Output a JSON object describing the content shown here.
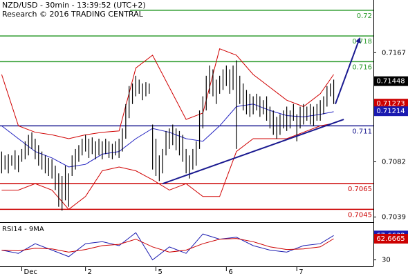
{
  "chart_data": [
    {
      "type": "ohlc",
      "title": "NZD/USD - 30min - 13:39:52 (UTC+2)",
      "subtitle": "Research © 2016 TRADING CENTRAL",
      "categories": [
        null,
        null,
        null,
        null,
        null,
        null,
        "Dec",
        null,
        null,
        null,
        null,
        null,
        null,
        null,
        null,
        null,
        null,
        null,
        null,
        null,
        null,
        null,
        null,
        null,
        null,
        "2",
        null,
        null,
        null,
        null,
        null,
        null,
        null,
        null,
        null,
        null,
        null,
        null,
        null,
        null,
        null,
        null,
        null,
        null,
        null,
        null,
        "5",
        null,
        null,
        null,
        null,
        null,
        null,
        null,
        null,
        null,
        null,
        null,
        null,
        null,
        null,
        null,
        null,
        null,
        null,
        null,
        null,
        "6",
        null,
        null,
        null,
        null,
        null,
        null,
        null,
        null,
        null,
        null,
        null,
        null,
        null,
        null,
        null,
        null,
        null,
        null,
        null,
        null,
        "7",
        null,
        null,
        null,
        null,
        null,
        null,
        null,
        null,
        null,
        null,
        null
      ],
      "high": [
        0.709,
        0.7087,
        0.7088,
        0.7087,
        0.7091,
        0.7087,
        0.7092,
        0.7098,
        0.7103,
        0.7105,
        0.71,
        0.7095,
        0.709,
        0.7087,
        0.7085,
        0.7084,
        0.7079,
        0.7073,
        0.7071,
        0.7079,
        0.7073,
        0.7087,
        0.7092,
        0.7095,
        0.71,
        0.7103,
        0.71,
        0.7101,
        0.7098,
        0.71,
        0.7098,
        0.71,
        0.7098,
        0.7096,
        0.7098,
        0.71,
        0.7108,
        0.7127,
        0.7141,
        0.7143,
        0.7149,
        0.7146,
        0.7143,
        0.7144,
        0.7143,
        0.7111,
        0.71,
        0.7087,
        0.7092,
        0.7106,
        0.7108,
        0.7111,
        0.7108,
        0.7106,
        0.7103,
        0.7092,
        0.7087,
        0.7092,
        0.7098,
        0.7122,
        0.7133,
        0.7149,
        0.7157,
        0.7154,
        0.7146,
        0.7149,
        0.7154,
        0.7157,
        0.7154,
        0.7157,
        0.7161,
        0.7149,
        0.7143,
        0.7138,
        0.7135,
        0.7133,
        0.7135,
        0.7133,
        0.713,
        0.7133,
        0.7125,
        0.7122,
        0.7117,
        0.7119,
        0.7122,
        0.7125,
        0.7122,
        0.7127,
        0.7119,
        0.7125,
        0.7127,
        0.7125,
        0.7127,
        0.7125,
        0.7127,
        0.713,
        0.7133,
        0.7141,
        0.7143,
        0.7146
      ],
      "low": [
        0.7073,
        0.7076,
        0.7073,
        0.7079,
        0.7076,
        0.7074,
        0.7082,
        0.7084,
        0.7087,
        0.7092,
        0.7084,
        0.7079,
        0.7076,
        0.7073,
        0.7071,
        0.7069,
        0.706,
        0.7047,
        0.7044,
        0.7052,
        0.7047,
        0.7071,
        0.7076,
        0.7082,
        0.7087,
        0.709,
        0.7085,
        0.7088,
        0.7084,
        0.7087,
        0.7084,
        0.7088,
        0.7085,
        0.7084,
        0.7087,
        0.7085,
        0.709,
        0.71,
        0.7116,
        0.7127,
        0.7133,
        0.7135,
        0.713,
        0.7133,
        0.7135,
        0.7076,
        0.7071,
        0.7067,
        0.7073,
        0.7087,
        0.7092,
        0.7095,
        0.7091,
        0.7087,
        0.7082,
        0.7073,
        0.7069,
        0.7076,
        0.7079,
        0.7092,
        0.7108,
        0.7122,
        0.7135,
        0.7133,
        0.7127,
        0.7135,
        0.7138,
        0.7141,
        0.7135,
        0.7138,
        0.7092,
        0.7127,
        0.7122,
        0.7119,
        0.7117,
        0.7119,
        0.7122,
        0.7117,
        0.7119,
        0.7114,
        0.7108,
        0.7103,
        0.71,
        0.7103,
        0.7108,
        0.7106,
        0.7108,
        0.7114,
        0.7098,
        0.7108,
        0.7111,
        0.7114,
        0.7111,
        0.711,
        0.7114,
        0.7114,
        0.7119,
        0.7125,
        0.7133,
        0.7127
      ],
      "bar_color": "#000000",
      "series": [
        {
          "color": "#d00000",
          "x": [
            0,
            5,
            10,
            15,
            20,
            25,
            30,
            35,
            40,
            45,
            50,
            55,
            60,
            65,
            70,
            75,
            80,
            85,
            90,
            95,
            99
          ],
          "values": [
            0.715,
            0.711,
            0.7105,
            0.7103,
            0.71,
            0.7103,
            0.7105,
            0.7106,
            0.7155,
            0.7165,
            0.714,
            0.7115,
            0.712,
            0.717,
            0.7165,
            0.715,
            0.714,
            0.713,
            0.7125,
            0.7135,
            0.715
          ]
        },
        {
          "color": "#d00000",
          "x": [
            0,
            5,
            10,
            15,
            20,
            25,
            30,
            35,
            40,
            45,
            50,
            55,
            60,
            65,
            70,
            75,
            80,
            85,
            90,
            95,
            99
          ],
          "values": [
            0.706,
            0.706,
            0.7065,
            0.706,
            0.7045,
            0.7055,
            0.7075,
            0.7078,
            0.7075,
            0.7068,
            0.706,
            0.7065,
            0.7055,
            0.7055,
            0.709,
            0.71,
            0.71,
            0.71,
            0.7105,
            0.711,
            0.7112
          ]
        },
        {
          "color": "#2020c0",
          "x": [
            0,
            5,
            10,
            15,
            20,
            25,
            30,
            35,
            40,
            45,
            50,
            55,
            60,
            65,
            70,
            75,
            80,
            85,
            90,
            95,
            99
          ],
          "values": [
            0.711,
            0.71,
            0.709,
            0.7085,
            0.7078,
            0.708,
            0.7088,
            0.709,
            0.71,
            0.7108,
            0.7105,
            0.71,
            0.7098,
            0.711,
            0.7125,
            0.7127,
            0.7122,
            0.7118,
            0.7117,
            0.7119,
            0.7121
          ]
        }
      ],
      "levels": [
        {
          "value": 0.72,
          "color": "#2a9a2a"
        },
        {
          "value": 0.718,
          "color": "#2a9a2a"
        },
        {
          "value": 0.716,
          "color": "#2a9a2a"
        },
        {
          "value": 0.711,
          "color": "#1a1a90"
        },
        {
          "value": 0.7065,
          "color": "#cc0000"
        },
        {
          "value": 0.7045,
          "color": "#cc0000"
        }
      ],
      "trendline": {
        "x": [
          48,
          102
        ],
        "values": [
          0.7065,
          0.7115
        ],
        "color": "#1a1a90"
      },
      "arrow": {
        "x": [
          99.5,
          106.7
        ],
        "values": [
          0.7127,
          0.7178
        ],
        "color": "#1a1a90"
      },
      "price_labels": [
        {
          "value": 0.71448,
          "color": "#000000"
        },
        {
          "value": 0.71273,
          "color": "#cc0000"
        },
        {
          "value": 0.71214,
          "color": "#1a1ab0"
        }
      ],
      "ylim": [
        0.7035,
        0.7208
      ],
      "yticks": [
        0.7167,
        0.7082,
        0.7039
      ]
    },
    {
      "type": "line",
      "title": "RSI14 - 9MA",
      "series": [
        {
          "color": "#1a1ab0",
          "x": [
            0,
            5,
            10,
            15,
            20,
            25,
            30,
            35,
            40,
            45,
            50,
            55,
            60,
            65,
            70,
            75,
            80,
            85,
            90,
            95,
            99
          ],
          "values": [
            45,
            40,
            55,
            45,
            35,
            55,
            58,
            52,
            72,
            30,
            50,
            40,
            70,
            62,
            65,
            52,
            45,
            42,
            52,
            55,
            67.6632
          ]
        },
        {
          "color": "#cc0000",
          "x": [
            0,
            5,
            10,
            15,
            20,
            25,
            30,
            35,
            40,
            45,
            50,
            55,
            60,
            65,
            70,
            75,
            80,
            85,
            90,
            95,
            99
          ],
          "values": [
            45,
            44,
            48,
            47,
            42,
            46,
            52,
            54,
            62,
            50,
            42,
            45,
            55,
            62,
            63,
            58,
            50,
            46,
            47,
            50,
            62.6665
          ]
        }
      ],
      "price_labels": [
        {
          "value": 67.6632,
          "color": "#1a1ab0"
        },
        {
          "value": 62.6665,
          "color": "#cc0000"
        }
      ],
      "ylim": [
        20,
        85
      ],
      "yticks": [
        30
      ]
    }
  ]
}
